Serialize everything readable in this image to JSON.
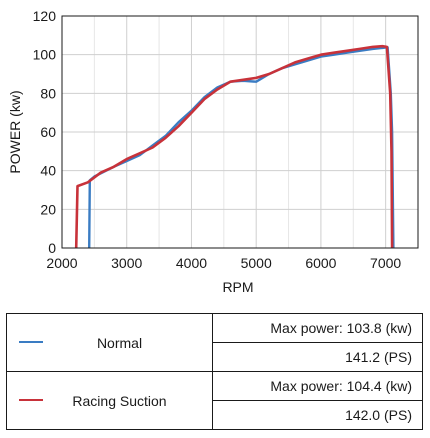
{
  "chart_data": {
    "type": "line",
    "xlabel": "RPM",
    "ylabel": "POWER (kw)",
    "xlim": [
      2000,
      7500
    ],
    "ylim": [
      0,
      120
    ],
    "xticks": [
      "2000",
      "3000",
      "4000",
      "5000",
      "6000",
      "7000"
    ],
    "yticks": [
      "0",
      "20",
      "40",
      "60",
      "80",
      "100",
      "120"
    ],
    "grid": true,
    "series": [
      {
        "name": "Normal",
        "color": "#3a7cc3",
        "points": [
          [
            2420,
            0
          ],
          [
            2430,
            35
          ],
          [
            2500,
            37
          ],
          [
            2800,
            42
          ],
          [
            3000,
            45
          ],
          [
            3200,
            48
          ],
          [
            3400,
            53
          ],
          [
            3600,
            58
          ],
          [
            3800,
            65
          ],
          [
            4000,
            71
          ],
          [
            4200,
            78
          ],
          [
            4400,
            83
          ],
          [
            4600,
            86
          ],
          [
            4800,
            86.5
          ],
          [
            5000,
            86
          ],
          [
            5200,
            90
          ],
          [
            5400,
            93
          ],
          [
            5600,
            95
          ],
          [
            5800,
            97
          ],
          [
            6000,
            99
          ],
          [
            6200,
            100
          ],
          [
            6400,
            101
          ],
          [
            6600,
            102
          ],
          [
            6800,
            103
          ],
          [
            6950,
            103.5
          ],
          [
            7030,
            103.8
          ],
          [
            7080,
            80
          ],
          [
            7100,
            60
          ],
          [
            7120,
            0
          ]
        ]
      },
      {
        "name": "Racing Suction",
        "color": "#c8323a",
        "points": [
          [
            2220,
            0
          ],
          [
            2240,
            32
          ],
          [
            2400,
            34
          ],
          [
            2600,
            39
          ],
          [
            2800,
            42
          ],
          [
            3000,
            46
          ],
          [
            3200,
            49
          ],
          [
            3400,
            52
          ],
          [
            3600,
            57
          ],
          [
            3800,
            63
          ],
          [
            4000,
            70
          ],
          [
            4200,
            77
          ],
          [
            4400,
            82
          ],
          [
            4600,
            86
          ],
          [
            4800,
            87
          ],
          [
            5000,
            88
          ],
          [
            5200,
            90
          ],
          [
            5400,
            93
          ],
          [
            5600,
            96
          ],
          [
            5800,
            98
          ],
          [
            6000,
            100
          ],
          [
            6200,
            101
          ],
          [
            6400,
            102
          ],
          [
            6600,
            103
          ],
          [
            6800,
            104
          ],
          [
            6950,
            104.4
          ],
          [
            7020,
            104
          ],
          [
            7070,
            80
          ],
          [
            7090,
            50
          ],
          [
            7100,
            0
          ]
        ]
      }
    ]
  },
  "legend": {
    "rows": [
      {
        "name": "Normal",
        "color": "#3a7cc3",
        "max_power": "Max power: 103.8 (kw)",
        "ps": "141.2 (PS)"
      },
      {
        "name": "Racing Suction",
        "color": "#c8323a",
        "max_power": "Max power: 104.4 (kw)",
        "ps": "142.0 (PS)"
      }
    ]
  }
}
